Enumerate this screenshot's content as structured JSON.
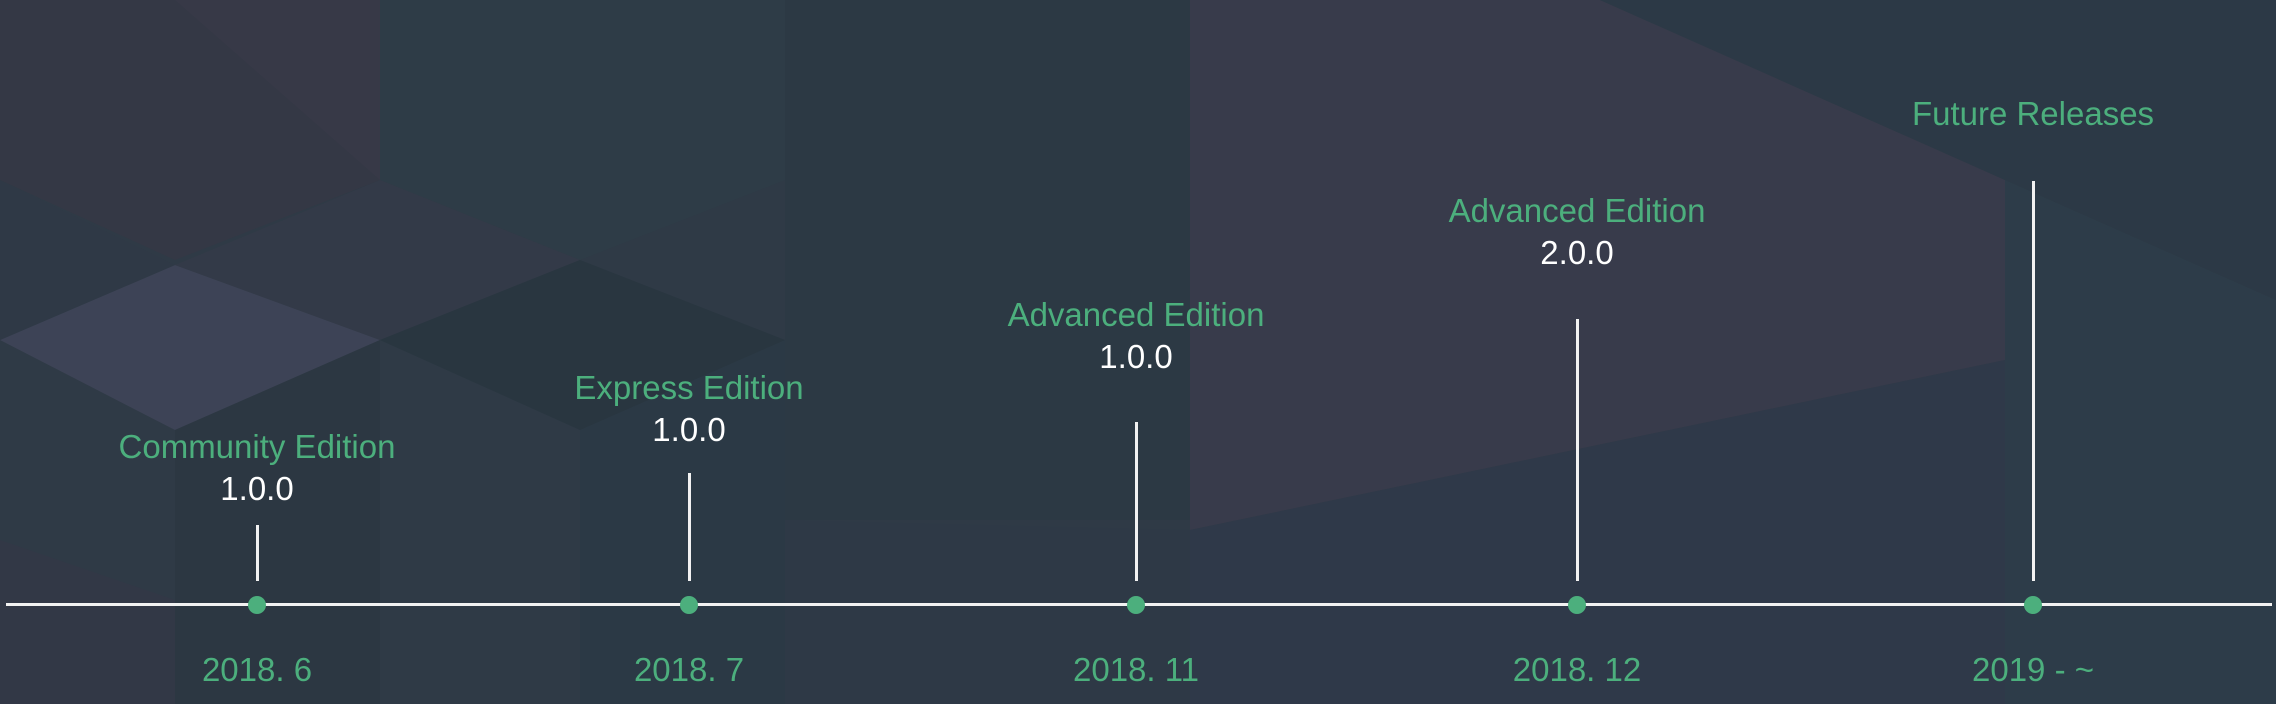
{
  "colors": {
    "accent": "#4caf7d",
    "background": "#2f3a46",
    "line": "#f2f2f2",
    "version_text": "#ffffff"
  },
  "timeline": {
    "milestones": [
      {
        "date": "2018. 6",
        "edition": "Community Edition",
        "version": "1.0.0"
      },
      {
        "date": "2018. 7",
        "edition": "Express Edition",
        "version": "1.0.0"
      },
      {
        "date": "2018. 11",
        "edition": "Advanced Edition",
        "version": "1.0.0"
      },
      {
        "date": "2018. 12",
        "edition": "Advanced Edition",
        "version": "2.0.0"
      },
      {
        "date": "2019 - ~",
        "edition": "Future Releases",
        "version": ""
      }
    ]
  }
}
